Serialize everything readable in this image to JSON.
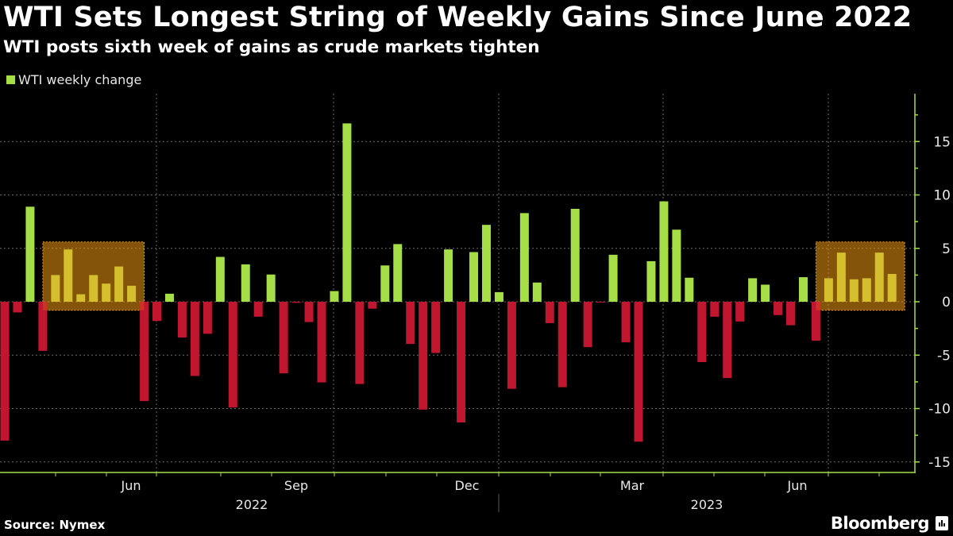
{
  "title": "WTI Sets Longest String of Weekly Gains Since June 2022",
  "subtitle": "WTI posts sixth week of gains as crude markets tighten",
  "source": "Source: Nymex",
  "brand": "Bloomberg",
  "colors": {
    "positive": "#a6de48",
    "negative": "#c1162f",
    "highlighted": "#cfc936",
    "highlight_box": "#f09a10",
    "axis": "#a6de48",
    "grid": "#6a6a6a"
  },
  "chart_data": {
    "type": "bar",
    "legend": [
      {
        "name": "WTI weekly change",
        "color": "#a6de48"
      }
    ],
    "legend_placement": "top-left",
    "values": [
      -13.0,
      -1.0,
      8.9,
      -4.6,
      2.5,
      4.9,
      0.7,
      2.5,
      1.7,
      3.3,
      1.5,
      -9.3,
      -1.8,
      0.75,
      -3.35,
      -6.95,
      -3.0,
      4.2,
      -9.9,
      3.5,
      -1.4,
      2.55,
      -6.7,
      -0.1,
      -1.9,
      -7.55,
      1.0,
      16.7,
      -7.7,
      -0.65,
      3.4,
      5.4,
      -3.95,
      -10.1,
      -4.8,
      4.9,
      -11.3,
      4.65,
      7.2,
      0.9,
      -8.15,
      8.3,
      1.8,
      -2.0,
      -8.0,
      8.7,
      -4.25,
      -0.05,
      4.4,
      -3.8,
      -13.1,
      3.8,
      9.4,
      6.75,
      2.25,
      -5.65,
      -1.4,
      -7.15,
      -1.85,
      2.2,
      1.6,
      -1.25,
      -2.2,
      2.3,
      -3.65,
      2.2,
      4.6,
      2.1,
      2.2,
      4.6,
      2.6
    ],
    "highlight_ranges": [
      {
        "from_bar": 4,
        "to_bar": 11
      },
      {
        "from_bar": 65,
        "to_bar": 71
      }
    ],
    "ylim": [
      -16.5,
      19
    ],
    "y_ticks": [
      15,
      10,
      5,
      0,
      -5,
      -10,
      -15
    ],
    "y_axis_side": "right",
    "x_month_labels": [
      "Jun",
      "Sep",
      "Dec",
      "Mar",
      "Jun"
    ],
    "x_year_labels": [
      "2022",
      "2023"
    ],
    "grid": true
  }
}
